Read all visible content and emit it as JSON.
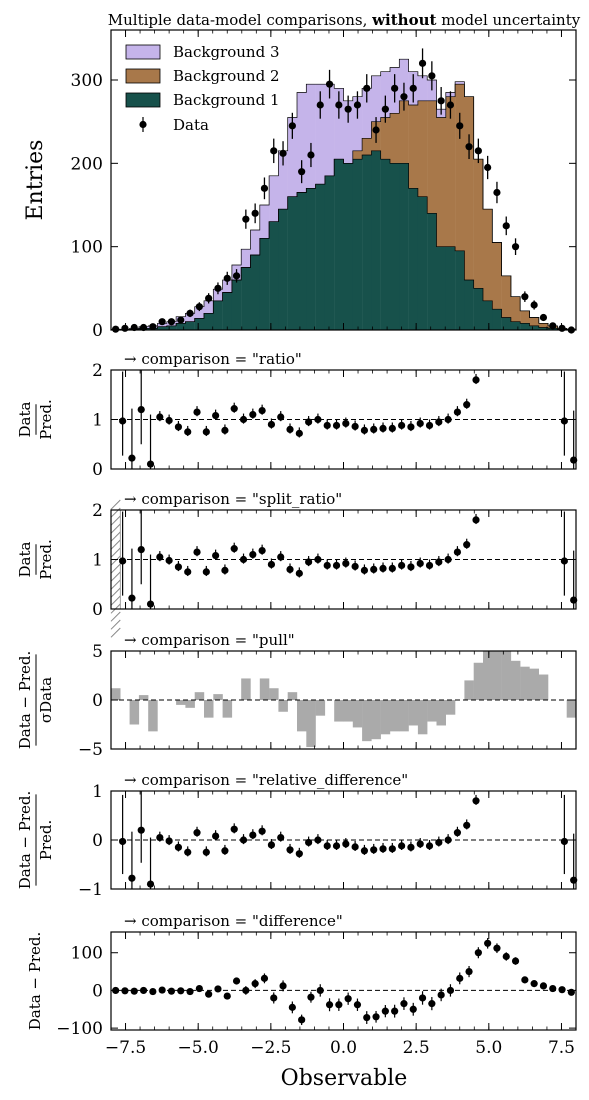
{
  "figure": {
    "title_prefix": "Multiple data-model comparisons, ",
    "title_bold": "without",
    "title_suffix": " model uncertainty",
    "xlabel": "Observable"
  },
  "colors": {
    "bg1": "#17514b",
    "bg2": "#a8784a",
    "bg3": "#c5b4ea",
    "pull_bar": "#aaaaaa",
    "data": "#000000"
  },
  "main": {
    "ylabel": "Entries",
    "yticks": [
      "0",
      "100",
      "200",
      "300"
    ],
    "legend": [
      "Background 3",
      "Background 2",
      "Background 1",
      "Data"
    ]
  },
  "xticks": [
    "−7.5",
    "−5.0",
    "−2.5",
    "0.0",
    "2.5",
    "5.0",
    "7.5"
  ],
  "subplots": [
    {
      "key": "ratio",
      "title": "→ comparison = \"ratio\"",
      "ylabel_top": "Data",
      "ylabel_bottom": "Pred.",
      "yticks": [
        "0",
        "1",
        "2"
      ]
    },
    {
      "key": "split_ratio",
      "title": "→ comparison = \"split_ratio\"",
      "ylabel_top": "Data",
      "ylabel_bottom": "Pred.",
      "yticks": [
        "0",
        "1",
        "2"
      ]
    },
    {
      "key": "pull",
      "title": "→ comparison = \"pull\"",
      "ylabel_top": "Data − Pred.",
      "ylabel_bottom": "σData",
      "yticks": [
        "−5",
        "0",
        "5"
      ]
    },
    {
      "key": "relative_difference",
      "title": "→ comparison = \"relative_difference\"",
      "ylabel_top": "Data − Pred.",
      "ylabel_bottom": "Pred.",
      "yticks": [
        "−1",
        "0",
        "1"
      ]
    },
    {
      "key": "difference",
      "title": "→ comparison = \"difference\"",
      "ylabel_top": "Data − Pred.",
      "ylabel_bottom": "",
      "yticks": [
        "−100",
        "0",
        "100"
      ]
    }
  ],
  "chart_data": [
    {
      "type": "bar",
      "stacked": true,
      "title": "Multiple data-model comparisons, without model uncertainty",
      "xlabel": "Observable",
      "ylabel": "Entries",
      "xlim": [
        -8,
        8
      ],
      "ylim": [
        0,
        360
      ],
      "bin_edges_start": -8,
      "bin_width": 0.32,
      "legend_position": "top-left",
      "series": [
        {
          "name": "Background 1",
          "values": [
            0,
            0,
            1,
            2,
            2,
            4,
            5,
            8,
            10,
            14,
            20,
            35,
            45,
            60,
            75,
            90,
            110,
            130,
            145,
            160,
            165,
            170,
            175,
            185,
            205,
            200,
            205,
            210,
            215,
            205,
            200,
            200,
            170,
            160,
            140,
            100,
            100,
            95,
            60,
            50,
            35,
            25,
            15,
            10,
            8,
            5,
            3,
            2,
            1,
            1
          ]
        },
        {
          "name": "Background 2",
          "values": [
            0,
            0,
            0,
            0,
            0,
            0,
            0,
            0,
            0,
            0,
            0,
            0,
            0,
            0,
            0,
            0,
            0,
            0,
            0,
            0,
            0,
            0,
            0,
            0,
            0,
            0,
            10,
            20,
            35,
            50,
            60,
            75,
            100,
            115,
            135,
            155,
            180,
            200,
            220,
            155,
            110,
            80,
            50,
            30,
            15,
            10,
            5,
            3,
            1,
            0
          ]
        },
        {
          "name": "Background 3",
          "values": [
            1,
            1,
            1,
            2,
            3,
            4,
            5,
            8,
            10,
            14,
            15,
            14,
            15,
            18,
            22,
            30,
            40,
            55,
            70,
            95,
            120,
            125,
            120,
            110,
            85,
            75,
            65,
            60,
            55,
            55,
            55,
            50,
            40,
            30,
            25,
            10,
            5,
            3,
            0,
            0,
            0,
            0,
            0,
            0,
            0,
            0,
            0,
            0,
            0,
            0
          ]
        }
      ],
      "data": {
        "name": "Data",
        "x": [
          -7.84,
          -7.52,
          -7.2,
          -6.88,
          -6.56,
          -6.24,
          -5.92,
          -5.6,
          -5.28,
          -4.96,
          -4.64,
          -4.32,
          -4.0,
          -3.68,
          -3.36,
          -3.04,
          -2.72,
          -2.4,
          -2.08,
          -1.76,
          -1.44,
          -1.12,
          -0.8,
          -0.48,
          -0.16,
          0.16,
          0.48,
          0.8,
          1.12,
          1.44,
          1.76,
          2.08,
          2.4,
          2.72,
          3.04,
          3.36,
          3.68,
          4.0,
          4.32,
          4.64,
          4.96,
          5.28,
          5.6,
          5.92,
          6.24,
          6.56,
          6.88,
          7.2,
          7.52,
          7.84
        ],
        "y": [
          1,
          2,
          3,
          3,
          4,
          10,
          10,
          12,
          20,
          28,
          38,
          50,
          62,
          65,
          133,
          140,
          170,
          215,
          212,
          245,
          190,
          210,
          270,
          295,
          270,
          265,
          270,
          290,
          240,
          265,
          290,
          280,
          290,
          320,
          305,
          275,
          270,
          245,
          220,
          215,
          195,
          165,
          125,
          100,
          40,
          30,
          15,
          5,
          2,
          0
        ]
      }
    },
    {
      "type": "scatter",
      "name": "ratio",
      "ylabel": "Data / Pred.",
      "ylim": [
        0,
        2
      ],
      "points": [
        [
          -7.6,
          0.97
        ],
        [
          -7.28,
          0.22
        ],
        [
          -6.96,
          1.2
        ],
        [
          -6.64,
          0.1
        ],
        [
          -6.32,
          1.05
        ],
        [
          -6.0,
          0.98
        ],
        [
          -5.68,
          0.85
        ],
        [
          -5.36,
          0.75
        ],
        [
          -5.04,
          1.15
        ],
        [
          -4.72,
          0.75
        ],
        [
          -4.4,
          1.08
        ],
        [
          -4.08,
          0.78
        ],
        [
          -3.76,
          1.22
        ],
        [
          -3.44,
          1.0
        ],
        [
          -3.12,
          1.1
        ],
        [
          -2.8,
          1.18
        ],
        [
          -2.48,
          0.9
        ],
        [
          -2.16,
          1.05
        ],
        [
          -1.84,
          0.8
        ],
        [
          -1.52,
          0.72
        ],
        [
          -1.2,
          0.95
        ],
        [
          -0.88,
          1.0
        ],
        [
          -0.56,
          0.88
        ],
        [
          -0.24,
          0.88
        ],
        [
          0.08,
          0.92
        ],
        [
          0.4,
          0.86
        ],
        [
          0.72,
          0.78
        ],
        [
          1.04,
          0.8
        ],
        [
          1.36,
          0.82
        ],
        [
          1.68,
          0.82
        ],
        [
          2.0,
          0.88
        ],
        [
          2.32,
          0.85
        ],
        [
          2.64,
          0.92
        ],
        [
          2.96,
          0.88
        ],
        [
          3.28,
          0.95
        ],
        [
          3.6,
          1.0
        ],
        [
          3.92,
          1.15
        ],
        [
          4.24,
          1.3
        ],
        [
          4.56,
          1.8
        ],
        [
          7.6,
          0.97
        ],
        [
          7.92,
          0.18
        ]
      ]
    },
    {
      "type": "scatter",
      "name": "split_ratio",
      "ylabel": "Data / Pred.",
      "ylim": [
        0,
        2
      ],
      "points": [
        [
          -7.6,
          0.97
        ],
        [
          -7.28,
          0.22
        ],
        [
          -6.96,
          1.2
        ],
        [
          -6.64,
          0.1
        ],
        [
          -6.32,
          1.05
        ],
        [
          -6.0,
          0.98
        ],
        [
          -5.68,
          0.85
        ],
        [
          -5.36,
          0.75
        ],
        [
          -5.04,
          1.15
        ],
        [
          -4.72,
          0.75
        ],
        [
          -4.4,
          1.08
        ],
        [
          -4.08,
          0.78
        ],
        [
          -3.76,
          1.22
        ],
        [
          -3.44,
          1.0
        ],
        [
          -3.12,
          1.1
        ],
        [
          -2.8,
          1.18
        ],
        [
          -2.48,
          0.9
        ],
        [
          -2.16,
          1.05
        ],
        [
          -1.84,
          0.8
        ],
        [
          -1.52,
          0.72
        ],
        [
          -1.2,
          0.95
        ],
        [
          -0.88,
          1.0
        ],
        [
          -0.56,
          0.88
        ],
        [
          -0.24,
          0.88
        ],
        [
          0.08,
          0.92
        ],
        [
          0.4,
          0.86
        ],
        [
          0.72,
          0.78
        ],
        [
          1.04,
          0.8
        ],
        [
          1.36,
          0.82
        ],
        [
          1.68,
          0.82
        ],
        [
          2.0,
          0.88
        ],
        [
          2.32,
          0.85
        ],
        [
          2.64,
          0.92
        ],
        [
          2.96,
          0.88
        ],
        [
          3.28,
          0.95
        ],
        [
          3.6,
          1.0
        ],
        [
          3.92,
          1.15
        ],
        [
          4.24,
          1.3
        ],
        [
          4.56,
          1.8
        ],
        [
          7.6,
          0.97
        ],
        [
          7.92,
          0.18
        ]
      ]
    },
    {
      "type": "bar",
      "name": "pull",
      "ylabel": "Data − Pred. / σData",
      "ylim": [
        -5,
        5
      ],
      "values": [
        1.2,
        0,
        -2.5,
        0.5,
        -3.2,
        0,
        0,
        -0.5,
        -0.8,
        0.8,
        -1.8,
        0.6,
        -1.8,
        0,
        2.2,
        0,
        2.2,
        1.2,
        -1.2,
        0.8,
        -3.2,
        -4.8,
        -1.6,
        0,
        -2.2,
        -2.2,
        -2.8,
        -4.2,
        -4,
        -3.5,
        -3.2,
        -3.2,
        -2.6,
        -3.5,
        -2.2,
        -2.6,
        -1.5,
        0,
        2,
        3.8,
        5,
        5,
        5,
        4,
        3.4,
        3.2,
        2.6,
        0,
        0,
        -1.8
      ]
    },
    {
      "type": "scatter",
      "name": "relative_difference",
      "ylabel": "Data − Pred. / Pred.",
      "ylim": [
        -1,
        1
      ],
      "points": [
        [
          -7.6,
          -0.03
        ],
        [
          -7.28,
          -0.78
        ],
        [
          -6.96,
          0.2
        ],
        [
          -6.64,
          -0.9
        ],
        [
          -6.32,
          0.05
        ],
        [
          -6.0,
          -0.02
        ],
        [
          -5.68,
          -0.15
        ],
        [
          -5.36,
          -0.25
        ],
        [
          -5.04,
          0.15
        ],
        [
          -4.72,
          -0.25
        ],
        [
          -4.4,
          0.08
        ],
        [
          -4.08,
          -0.22
        ],
        [
          -3.76,
          0.22
        ],
        [
          -3.44,
          0.0
        ],
        [
          -3.12,
          0.1
        ],
        [
          -2.8,
          0.18
        ],
        [
          -2.48,
          -0.1
        ],
        [
          -2.16,
          0.05
        ],
        [
          -1.84,
          -0.2
        ],
        [
          -1.52,
          -0.28
        ],
        [
          -1.2,
          -0.05
        ],
        [
          -0.88,
          0.0
        ],
        [
          -0.56,
          -0.12
        ],
        [
          -0.24,
          -0.12
        ],
        [
          0.08,
          -0.08
        ],
        [
          0.4,
          -0.14
        ],
        [
          0.72,
          -0.22
        ],
        [
          1.04,
          -0.2
        ],
        [
          1.36,
          -0.18
        ],
        [
          1.68,
          -0.18
        ],
        [
          2.0,
          -0.12
        ],
        [
          2.32,
          -0.15
        ],
        [
          2.64,
          -0.08
        ],
        [
          2.96,
          -0.12
        ],
        [
          3.28,
          -0.05
        ],
        [
          3.6,
          0.0
        ],
        [
          3.92,
          0.15
        ],
        [
          4.24,
          0.3
        ],
        [
          4.56,
          0.8
        ],
        [
          7.6,
          -0.03
        ],
        [
          7.92,
          -0.82
        ]
      ]
    },
    {
      "type": "scatter",
      "name": "difference",
      "ylabel": "Data − Pred.",
      "ylim": [
        -105,
        155
      ],
      "points": [
        [
          -7.84,
          0
        ],
        [
          -7.52,
          -1
        ],
        [
          -7.2,
          -2
        ],
        [
          -6.88,
          0
        ],
        [
          -6.56,
          -3
        ],
        [
          -6.24,
          1
        ],
        [
          -5.92,
          -2
        ],
        [
          -5.6,
          -1
        ],
        [
          -5.28,
          -3
        ],
        [
          -4.96,
          5
        ],
        [
          -4.64,
          -10
        ],
        [
          -4.32,
          4
        ],
        [
          -4.0,
          -15
        ],
        [
          -3.68,
          25
        ],
        [
          -3.36,
          0
        ],
        [
          -3.04,
          18
        ],
        [
          -2.72,
          32
        ],
        [
          -2.4,
          -20
        ],
        [
          -2.08,
          12
        ],
        [
          -1.76,
          -45
        ],
        [
          -1.44,
          -78
        ],
        [
          -1.12,
          -18
        ],
        [
          -0.8,
          0
        ],
        [
          -0.48,
          -38
        ],
        [
          -0.16,
          -38
        ],
        [
          0.16,
          -22
        ],
        [
          0.48,
          -38
        ],
        [
          0.8,
          -72
        ],
        [
          1.12,
          -70
        ],
        [
          1.44,
          -55
        ],
        [
          1.76,
          -55
        ],
        [
          2.08,
          -35
        ],
        [
          2.4,
          -50
        ],
        [
          2.72,
          -20
        ],
        [
          3.04,
          -35
        ],
        [
          3.36,
          -12
        ],
        [
          3.68,
          0
        ],
        [
          4.0,
          32
        ],
        [
          4.32,
          50
        ],
        [
          4.64,
          100
        ],
        [
          4.96,
          125
        ],
        [
          5.28,
          112
        ],
        [
          5.6,
          90
        ],
        [
          5.92,
          78
        ],
        [
          6.24,
          28
        ],
        [
          6.56,
          18
        ],
        [
          6.88,
          12
        ],
        [
          7.2,
          5
        ],
        [
          7.52,
          2
        ],
        [
          7.84,
          -5
        ]
      ]
    }
  ]
}
